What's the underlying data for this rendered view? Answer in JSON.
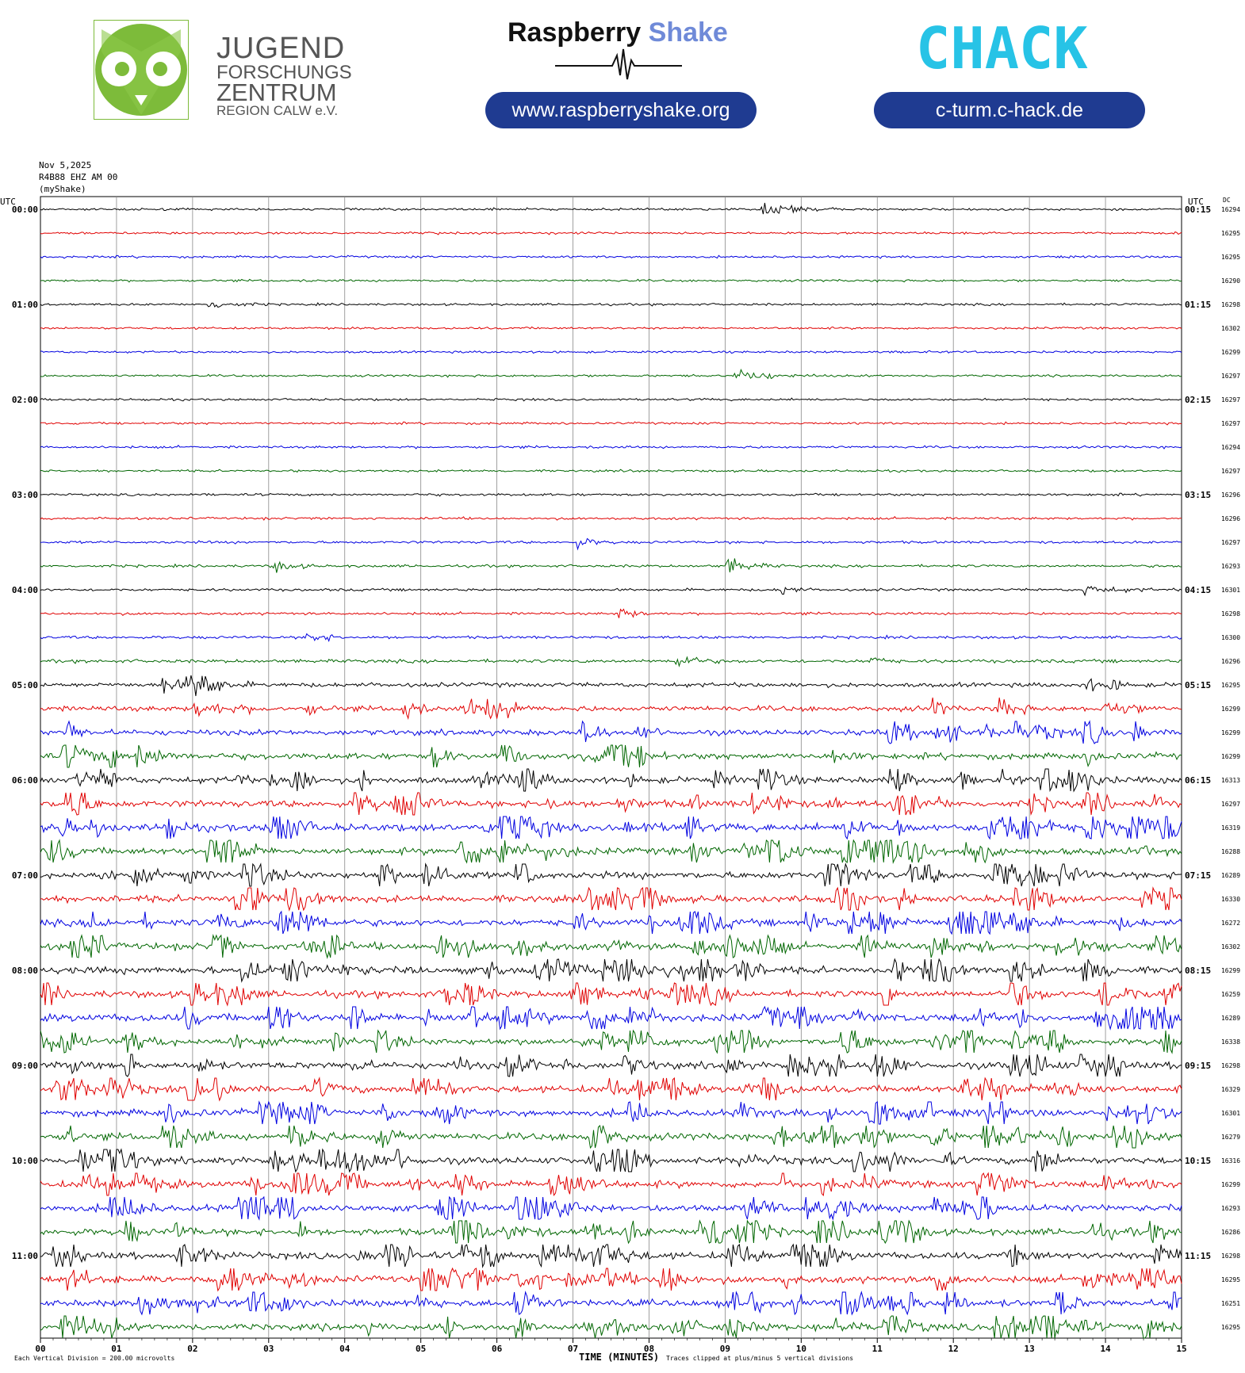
{
  "header": {
    "jfz_lines": [
      "JUGEND",
      "FORSCHUNGS",
      "ZENTRUM",
      "REGION CALW e.V."
    ],
    "rs_title_main": "Raspberry",
    "rs_title_accent": "Shake",
    "rs_url": "www.raspberryshake.org",
    "chack_logo": "CHACK",
    "chack_url": "c-turm.c-hack.de",
    "colors": {
      "jfz_green": "#7dbb3a",
      "pill_blue": "#1f3b91",
      "rs_accent": "#6f8ad8",
      "chack_green": "#7ec84a",
      "chack_cyan": "#27c3e6"
    }
  },
  "meta": {
    "date": "Nov 5,2025",
    "station": "R4B88 EHZ AM 00",
    "source": "(myShake)",
    "utc_left": "UTC",
    "utc_right": "UTC",
    "dc_header": "DC"
  },
  "chart_data": {
    "type": "helicorder",
    "trace_colors": [
      "#000000",
      "#e00000",
      "#0000e0",
      "#006600"
    ],
    "x_axis_label": "TIME (MINUTES)",
    "x_ticks": [
      "00",
      "01",
      "02",
      "03",
      "04",
      "05",
      "06",
      "07",
      "08",
      "09",
      "10",
      "11",
      "12",
      "13",
      "14",
      "15"
    ],
    "xlim": [
      0,
      15
    ],
    "grid": true,
    "rows_total": 48,
    "left_time_labels": [
      "00:00",
      "01:00",
      "02:00",
      "03:00",
      "04:00",
      "05:00",
      "06:00",
      "07:00",
      "08:00",
      "09:00",
      "10:00",
      "11:00"
    ],
    "right_time_labels": [
      "00:15",
      "01:15",
      "02:15",
      "03:15",
      "04:15",
      "05:15",
      "06:15",
      "07:15",
      "08:15",
      "09:15",
      "10:15",
      "11:15"
    ],
    "dc_offsets": [
      16294,
      16295,
      16295,
      16290,
      16298,
      16302,
      16299,
      16297,
      16297,
      16297,
      16294,
      16297,
      16296,
      16296,
      16297,
      16293,
      16301,
      16298,
      16300,
      16296,
      16295,
      16299,
      16299,
      16299,
      16313,
      16297,
      16319,
      16288,
      16289,
      16330,
      16272,
      16302,
      16299,
      16259,
      16289,
      16338,
      16298,
      16329,
      16301,
      16279,
      16316,
      16299,
      16293,
      16286,
      16298,
      16295,
      16251,
      16295
    ],
    "activity_profile": [
      0.15,
      0.15,
      0.15,
      0.15,
      0.15,
      0.15,
      0.15,
      0.15,
      0.15,
      0.15,
      0.2,
      0.15,
      0.2,
      0.2,
      0.25,
      0.25,
      0.25,
      0.25,
      0.3,
      0.45,
      0.7,
      0.9,
      1.0,
      1.1,
      1.2,
      1.3,
      1.4,
      1.3,
      1.3,
      1.3,
      1.3,
      1.3,
      1.3,
      1.3,
      1.5,
      1.3,
      1.3,
      1.3,
      1.3,
      1.3,
      1.3,
      1.3,
      1.3,
      1.3,
      1.3,
      1.3,
      1.3,
      1.3
    ],
    "footnote_left": "Each Vertical Division =  200.00 microvolts",
    "footnote_right": "Traces clipped at plus/minus 5 vertical divisions"
  }
}
